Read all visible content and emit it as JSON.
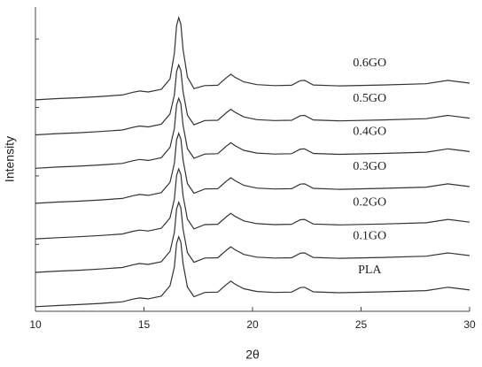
{
  "chart_data": {
    "type": "line",
    "xlabel": "2θ",
    "ylabel": "Intensity",
    "xlim": [
      10,
      30
    ],
    "xticks": [
      10,
      15,
      20,
      25,
      30
    ],
    "ylim": [
      0,
      100
    ],
    "yticks": [
      22,
      44.5,
      67,
      89.5
    ],
    "y_tick_labels": false,
    "x": [
      10,
      11,
      12,
      13,
      14,
      14.5,
      14.8,
      15.2,
      15.8,
      16.2,
      16.4,
      16.5,
      16.6,
      16.7,
      16.8,
      17.0,
      17.3,
      17.8,
      18.4,
      18.8,
      19.0,
      19.2,
      19.6,
      20.2,
      21,
      21.8,
      22.2,
      22.4,
      22.8,
      24,
      26,
      28,
      29,
      30
    ],
    "series": [
      {
        "name": "PLA",
        "color": "#333333",
        "values": [
          1.5,
          1.9,
          2.2,
          2.6,
          3.1,
          4,
          4.4,
          4.1,
          5,
          8.4,
          14.6,
          22.3,
          24.5,
          22.7,
          15.7,
          8,
          4.8,
          6.2,
          6.3,
          8.8,
          9.9,
          8.9,
          7.4,
          6.5,
          6.2,
          6.3,
          7.8,
          7.9,
          6.4,
          6.1,
          6.4,
          6.8,
          7.9,
          7
        ]
      },
      {
        "name": "0.1GO",
        "color": "#333333",
        "values": [
          12.8,
          13.2,
          13.5,
          13.9,
          14.4,
          15.3,
          15.7,
          15.4,
          16.3,
          19.7,
          25.9,
          33.6,
          35.8,
          34,
          27,
          19.3,
          16.1,
          17.5,
          17.6,
          20.1,
          21.2,
          20.2,
          18.7,
          17.8,
          17.5,
          17.6,
          19.1,
          19.2,
          17.7,
          17.4,
          17.7,
          18.1,
          19.2,
          18.3
        ]
      },
      {
        "name": "0.2GO",
        "color": "#333333",
        "values": [
          23.8,
          24.2,
          24.5,
          24.9,
          25.4,
          26.3,
          26.7,
          26.4,
          27.3,
          30.7,
          36.9,
          44.6,
          46.8,
          45,
          38,
          30.3,
          27.1,
          28.5,
          28.6,
          31.1,
          32.2,
          31.2,
          29.7,
          28.8,
          28.5,
          28.6,
          30.1,
          30.2,
          28.7,
          28.4,
          28.7,
          29.1,
          30.2,
          29.3
        ]
      },
      {
        "name": "0.3GO",
        "color": "#333333",
        "values": [
          35.5,
          35.9,
          36.2,
          36.6,
          37.1,
          38,
          38.4,
          38.1,
          39,
          42.4,
          48.6,
          56.3,
          58.5,
          56.7,
          49.7,
          42,
          38.8,
          40.2,
          40.3,
          42.8,
          43.9,
          42.9,
          41.4,
          40.5,
          40.2,
          40.3,
          41.8,
          41.9,
          40.4,
          40.1,
          40.4,
          40.8,
          41.9,
          41
        ]
      },
      {
        "name": "0.4GO",
        "color": "#333333",
        "values": [
          47,
          47.4,
          47.7,
          48.1,
          48.6,
          49.5,
          49.9,
          49.6,
          50.5,
          53.9,
          60.1,
          67.8,
          70,
          68.2,
          61.2,
          53.5,
          50.3,
          51.7,
          51.8,
          54.3,
          55.4,
          54.4,
          52.9,
          52,
          51.7,
          51.8,
          53.3,
          53.4,
          51.9,
          51.6,
          51.9,
          52.3,
          53.4,
          52.5
        ]
      },
      {
        "name": "0.5GO",
        "color": "#333333",
        "values": [
          58,
          58.4,
          58.7,
          59.1,
          59.6,
          60.5,
          60.9,
          60.6,
          61.5,
          64.9,
          71.1,
          78.8,
          81,
          79.2,
          72.2,
          64.5,
          61.3,
          62.7,
          62.8,
          65.3,
          66.4,
          65.4,
          63.9,
          63,
          62.7,
          62.8,
          64.3,
          64.4,
          62.9,
          62.6,
          62.9,
          63.3,
          64.4,
          63.5
        ]
      },
      {
        "name": "0.6GO",
        "color": "#333333",
        "values": [
          69.5,
          69.9,
          70.2,
          70.6,
          71.1,
          72,
          72.4,
          72.1,
          73,
          76.4,
          84.8,
          93.9,
          96.5,
          94.4,
          86.1,
          77,
          73.2,
          74.2,
          74.3,
          76.8,
          77.9,
          76.9,
          75.4,
          74.5,
          74.2,
          74.3,
          75.8,
          75.9,
          74.4,
          74.1,
          74.4,
          74.8,
          75.9,
          75
        ]
      }
    ]
  }
}
